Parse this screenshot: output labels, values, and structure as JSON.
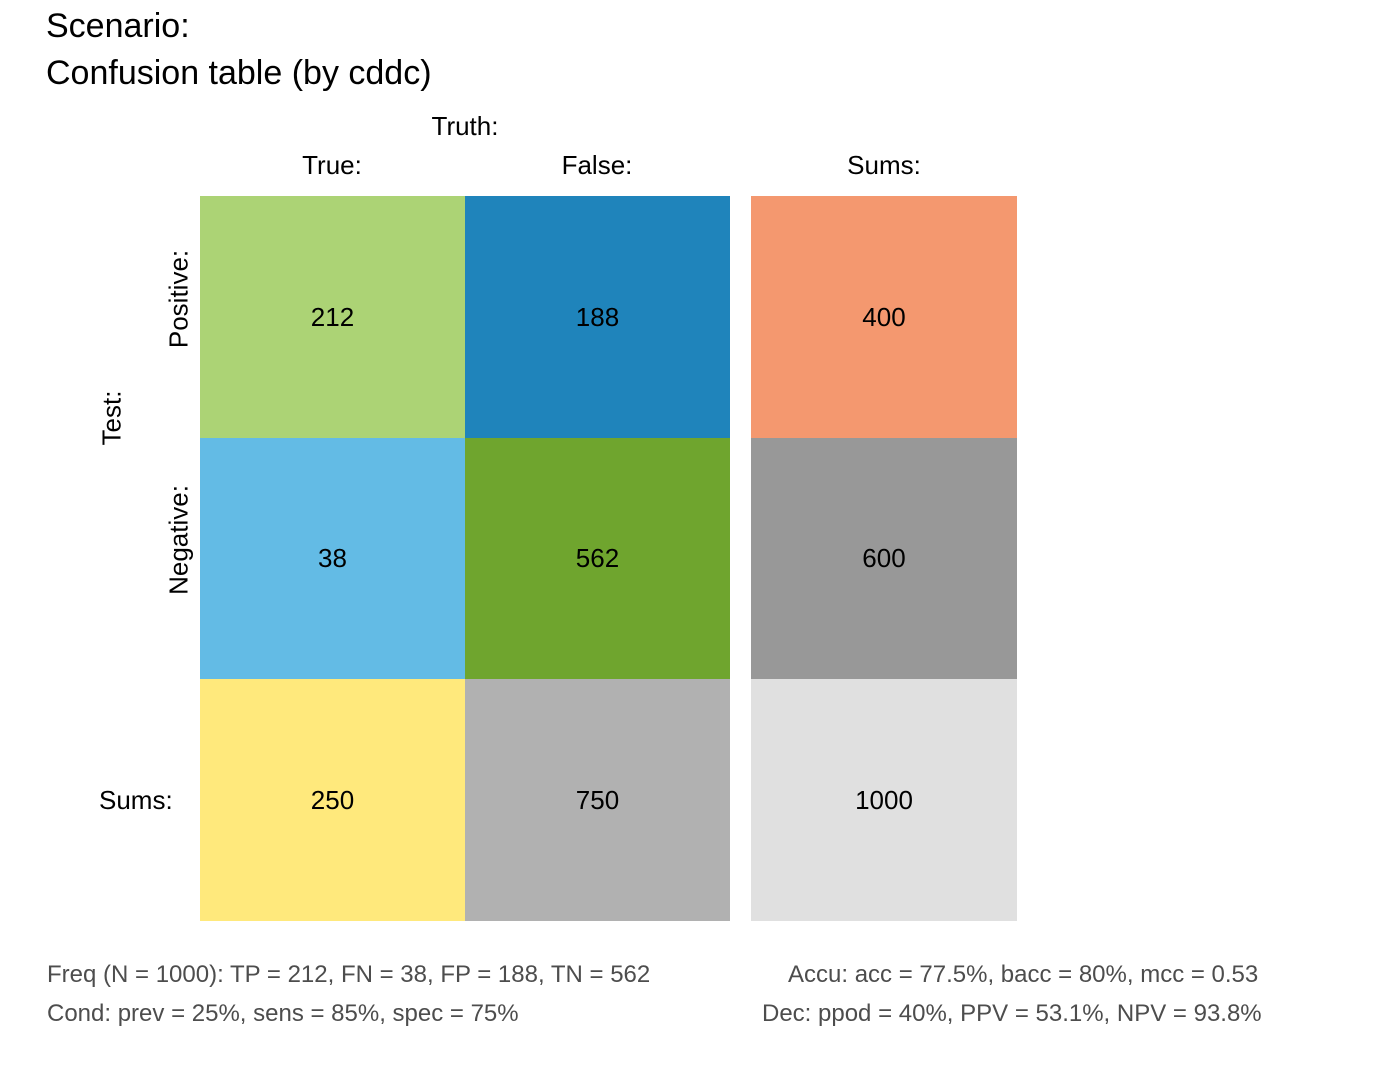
{
  "title": {
    "line1": "Scenario:",
    "line2": "Confusion table (by cddc)"
  },
  "labels": {
    "truth": "Truth:",
    "true_col": "True:",
    "false_col": "False:",
    "sums_col": "Sums:",
    "test": "Test:",
    "positive_row": "Positive:",
    "negative_row": "Negative:",
    "sums_row": "Sums:"
  },
  "chart_data": {
    "type": "table",
    "columns": [
      "True:",
      "False:",
      "Sums:"
    ],
    "rows": [
      "Positive:",
      "Negative:",
      "Sums:"
    ],
    "values": [
      [
        212,
        188,
        400
      ],
      [
        38,
        562,
        600
      ],
      [
        250,
        750,
        1000
      ]
    ],
    "colors": [
      [
        "#acd375",
        "#1f84bb",
        "#f4986f"
      ],
      [
        "#63bbe5",
        "#6fa52e",
        "#989898"
      ],
      [
        "#ffe97c",
        "#b1b1b1",
        "#e0e0e0"
      ]
    ],
    "cells": {
      "tp": "212",
      "fp": "188",
      "pos_sum": "400",
      "fn": "38",
      "tn": "562",
      "neg_sum": "600",
      "true_sum": "250",
      "false_sum": "750",
      "total": "1000"
    }
  },
  "footer": {
    "freq": "Freq (N = 1000):  TP = 212, FN = 38, FP = 188, TN = 562",
    "accu": "Accu:  acc = 77.5%, bacc = 80%, mcc = 0.53",
    "cond": "Cond:  prev = 25%, sens = 85%, spec = 75%",
    "dec": "Dec:  ppod = 40%, PPV = 53.1%, NPV = 93.8%"
  }
}
